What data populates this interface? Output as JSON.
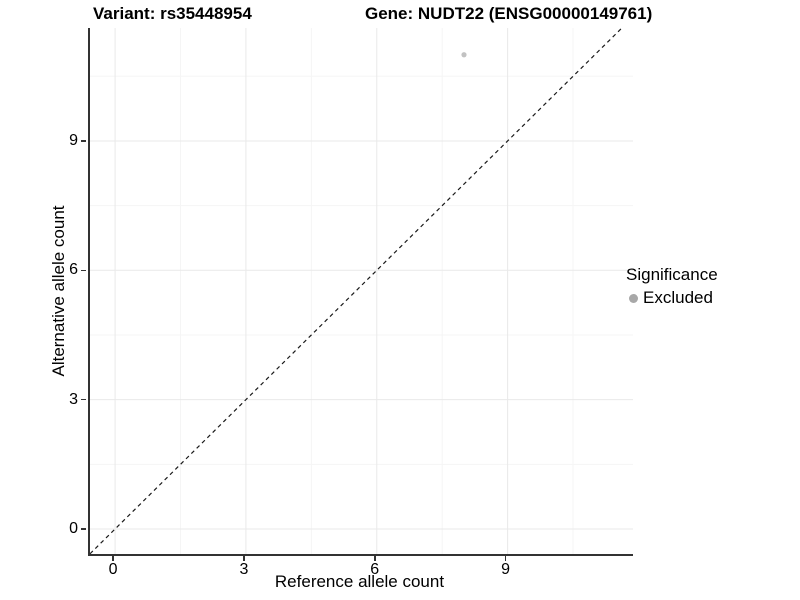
{
  "titles": {
    "variant": "Variant: rs35448954",
    "gene": "Gene: NUDT22 (ENSG00000149761)"
  },
  "chart_data": {
    "type": "scatter",
    "title_left": "Variant: rs35448954",
    "title_right": "Gene: NUDT22 (ENSG00000149761)",
    "xlabel": "Reference allele count",
    "ylabel": "Alternative allele count",
    "xlim": [
      -0.575,
      11.875
    ],
    "ylim": [
      -0.58,
      11.62
    ],
    "x_ticks": [
      0,
      3,
      6,
      9
    ],
    "y_ticks": [
      0,
      3,
      6,
      9
    ],
    "x_minor_ticks": [
      1.5,
      4.5,
      7.5,
      10.5
    ],
    "y_minor_ticks": [
      1.5,
      4.5,
      7.5,
      10.5
    ],
    "grid": true,
    "points": [
      {
        "x": 8,
        "y": 11,
        "series": "Excluded",
        "color": "#c2c2c2",
        "radius_px": 2.6
      }
    ],
    "reference_line": {
      "type": "identity y=x",
      "style": "dashed",
      "color": "#1a1a1a"
    },
    "legend": {
      "title": "Significance",
      "position": "right",
      "items": [
        {
          "label": "Excluded",
          "color": "#a8a8a8"
        }
      ]
    },
    "colors": {
      "major_grid": "#e9e9e9",
      "minor_grid": "#f5f5f5",
      "axis_line": "#333333",
      "background": "#ffffff"
    }
  }
}
